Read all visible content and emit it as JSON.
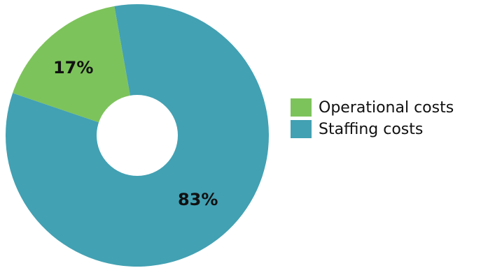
{
  "chart_data": {
    "type": "pie",
    "variant": "donut",
    "title": "",
    "slices": [
      {
        "name": "Operational costs",
        "value": 17,
        "label": "17%",
        "color": "#7dc35b"
      },
      {
        "name": "Staffing costs",
        "value": 83,
        "label": "83%",
        "color": "#42a1b3"
      }
    ],
    "legend": {
      "position": "right",
      "items": [
        {
          "label": "Operational costs",
          "color": "#7dc35b"
        },
        {
          "label": "Staffing costs",
          "color": "#42a1b3"
        }
      ]
    }
  }
}
